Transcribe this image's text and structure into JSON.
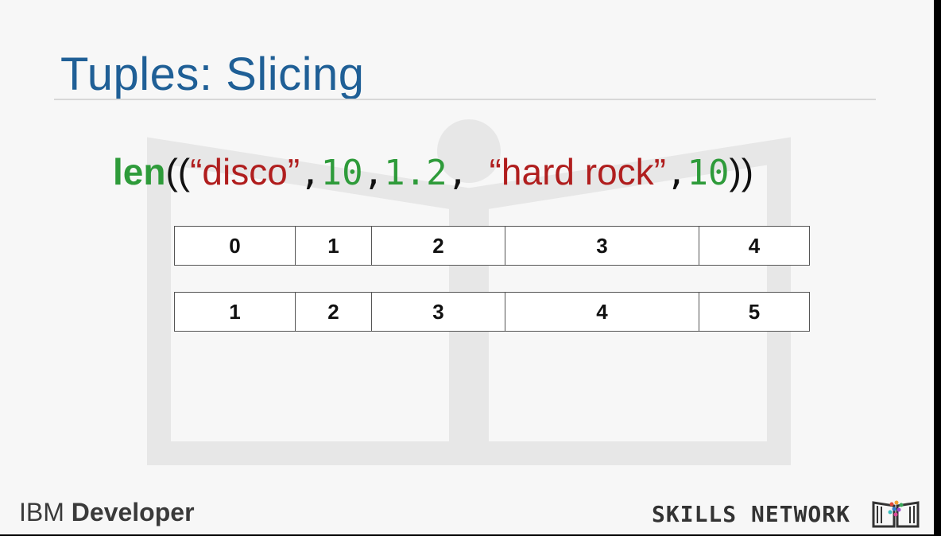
{
  "slide": {
    "title": "Tuples: Slicing",
    "code": {
      "fn": "len",
      "open": "((",
      "close": "))",
      "tokens": [
        {
          "type": "str",
          "text": "“disco”"
        },
        {
          "type": "comma",
          "text": ","
        },
        {
          "type": "num",
          "text": "10"
        },
        {
          "type": "comma",
          "text": ","
        },
        {
          "type": "num",
          "text": "1.2"
        },
        {
          "type": "comma",
          "text": ", "
        },
        {
          "type": "str",
          "text": "“hard rock”"
        },
        {
          "type": "comma",
          "text": ","
        },
        {
          "type": "num",
          "text": "10"
        }
      ]
    },
    "index_row": [
      "0",
      "1",
      "2",
      "3",
      "4"
    ],
    "length_row": [
      "1",
      "2",
      "3",
      "4",
      "5"
    ]
  },
  "footer": {
    "brand_left_1": "IBM",
    "brand_left_2": "Developer",
    "brand_right": "SKILLS NETWORK"
  },
  "colors": {
    "title": "#1f5f96",
    "keyword": "#2e9b3a",
    "string": "#b01e1e",
    "number": "#2e9b3a"
  }
}
